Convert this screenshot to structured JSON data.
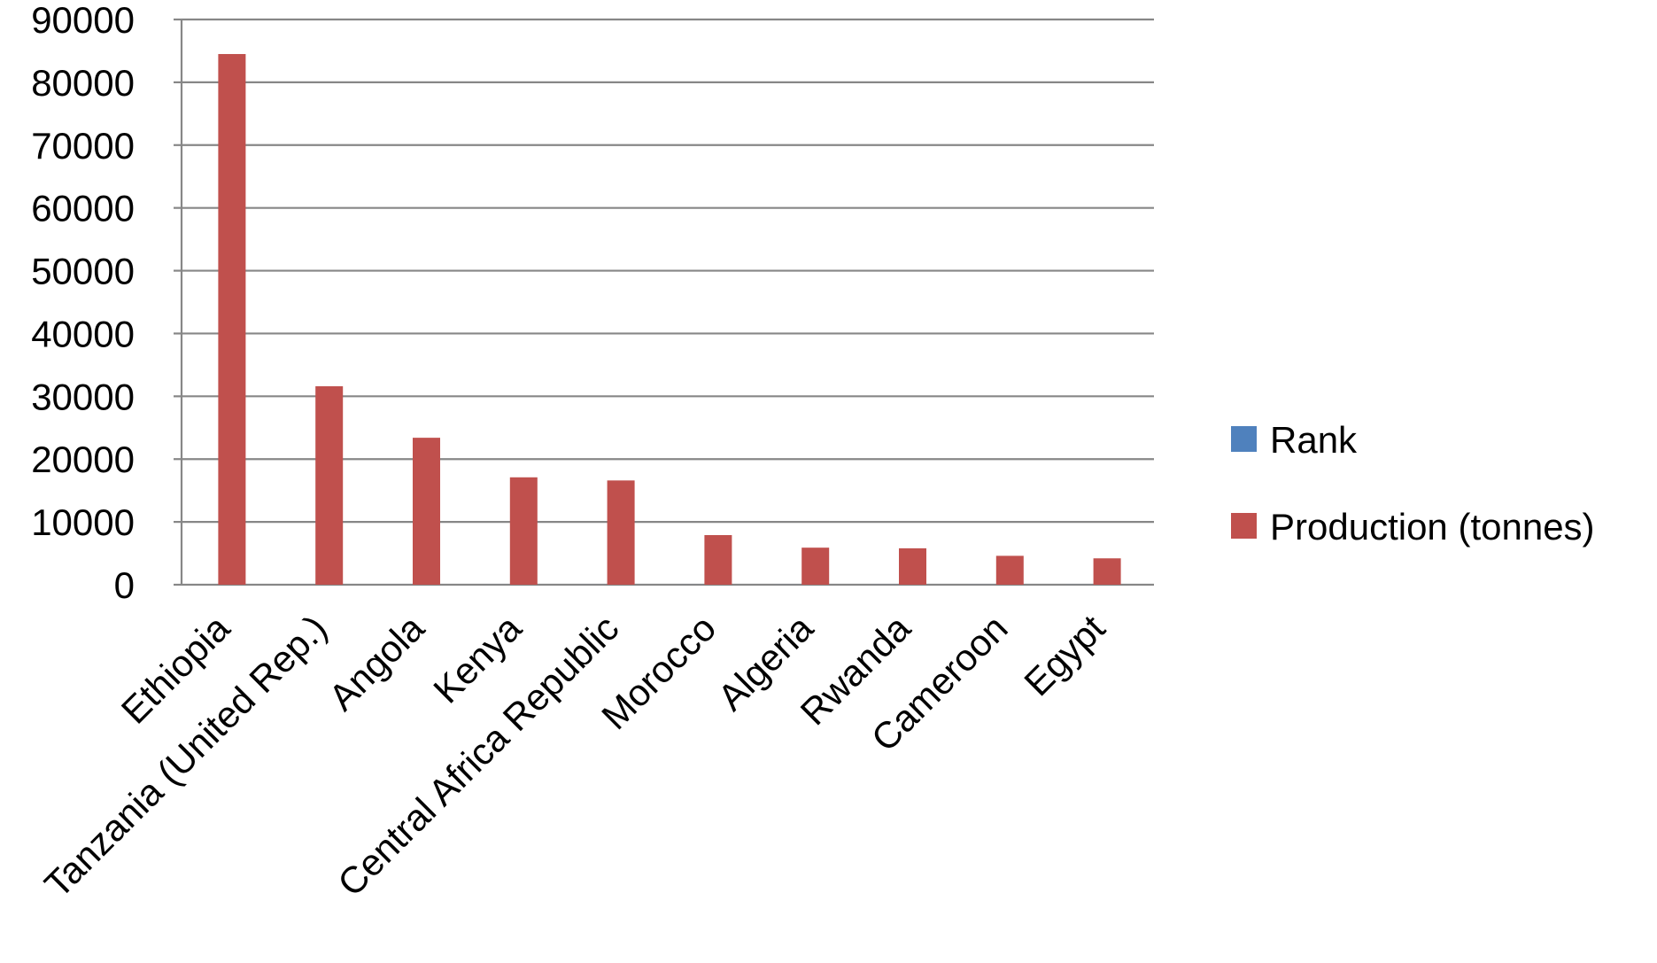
{
  "chart_data": {
    "type": "bar",
    "categories": [
      "Ethiopia",
      "Tanzania (United Rep.)",
      "Angola",
      "Kenya",
      "Central Africa Republic",
      "Morocco",
      "Algeria",
      "Rwanda",
      "Cameroon",
      "Egypt"
    ],
    "series": [
      {
        "name": "Rank",
        "color": "#4F81BD",
        "values": [
          1,
          2,
          3,
          4,
          5,
          6,
          7,
          8,
          9,
          10
        ]
      },
      {
        "name": "Production (tonnes)",
        "color": "#C0504D",
        "values": [
          84500,
          31600,
          23400,
          17100,
          16600,
          7900,
          5900,
          5800,
          4600,
          4200
        ]
      }
    ],
    "y_ticks": [
      "0",
      "10000",
      "20000",
      "30000",
      "40000",
      "50000",
      "60000",
      "70000",
      "80000",
      "90000"
    ],
    "ylim": [
      0,
      90000
    ],
    "grid": true,
    "legend_position": "right",
    "title": "",
    "xlabel": "",
    "ylabel": ""
  }
}
